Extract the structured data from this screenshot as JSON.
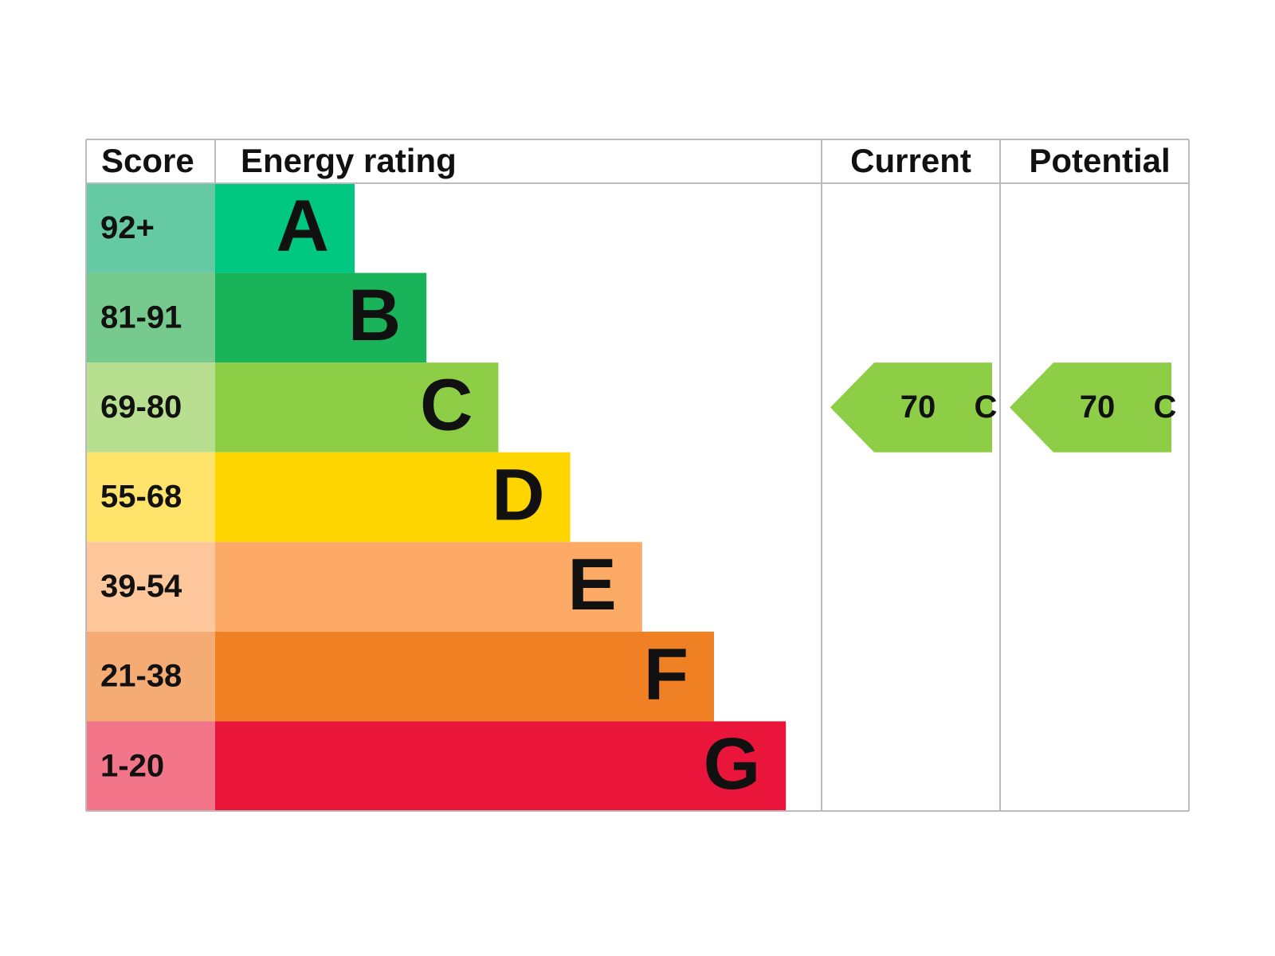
{
  "header": {
    "score": "Score",
    "rating": "Energy rating",
    "current": "Current",
    "potential": "Potential"
  },
  "bands": [
    {
      "score": "92+",
      "letter": "A",
      "color": "#00c781",
      "light": "#66c9a6"
    },
    {
      "score": "81-91",
      "letter": "B",
      "color": "#19b459",
      "light": "#77ca8d"
    },
    {
      "score": "69-80",
      "letter": "C",
      "color": "#8dce46",
      "light": "#b8df8f"
    },
    {
      "score": "55-68",
      "letter": "D",
      "color": "#ffd500",
      "light": "#ffe36a"
    },
    {
      "score": "39-54",
      "letter": "E",
      "color": "#fcaa65",
      "light": "#fdc79b"
    },
    {
      "score": "21-38",
      "letter": "F",
      "color": "#ef8023",
      "light": "#f4ac74"
    },
    {
      "score": "1-20",
      "letter": "G",
      "color": "#e9153b",
      "light": "#f2758a"
    }
  ],
  "current": {
    "score": 70,
    "letter": "C"
  },
  "potential": {
    "score": 70,
    "letter": "C"
  }
}
